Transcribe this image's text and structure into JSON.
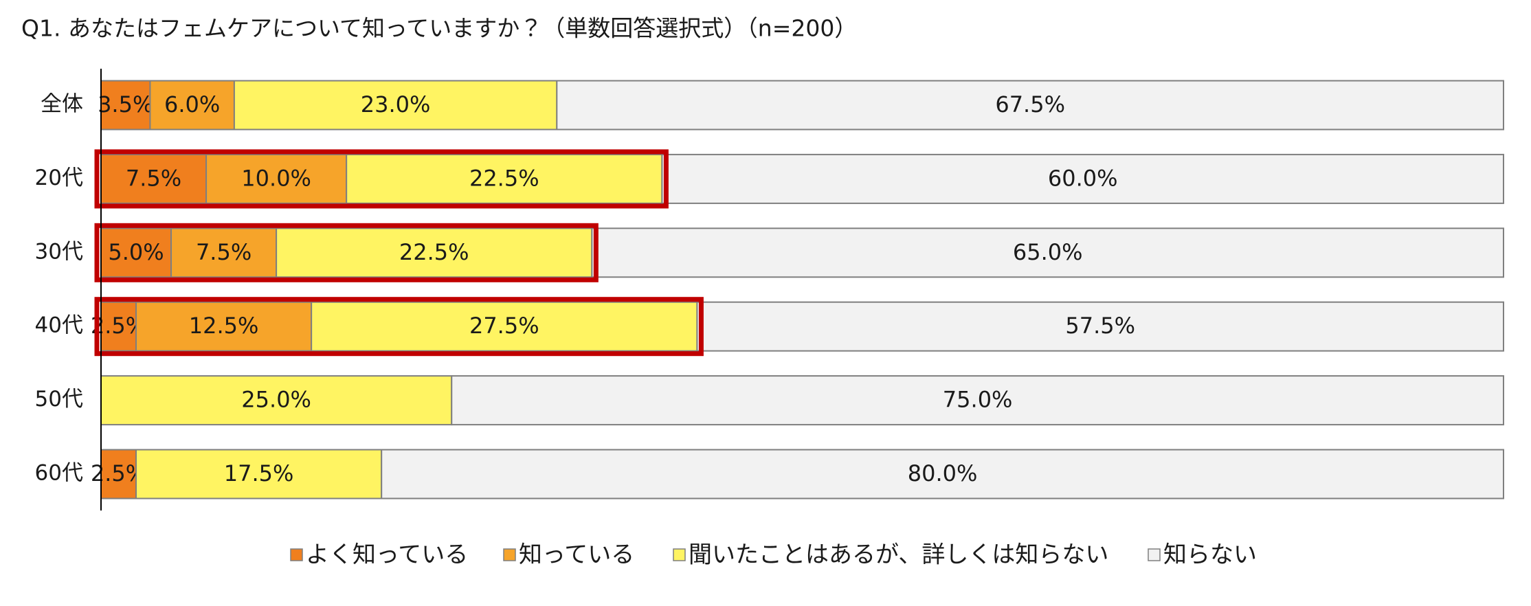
{
  "chart_data": {
    "type": "stacked-bar-horizontal",
    "title": "Q1. あなたはフェムケアについて知っていますか？（単数回答選択式）（n=200）",
    "categories": [
      "全体",
      "20代",
      "30代",
      "40代",
      "50代",
      "60代"
    ],
    "xlim": [
      0,
      100
    ],
    "highlight_rows": [
      1,
      2,
      3
    ],
    "highlight_color": "#c00000",
    "series": [
      {
        "name": "よく知っている",
        "color": "#f07f1e",
        "values": [
          3.5,
          7.5,
          5.0,
          2.5,
          0,
          2.5
        ],
        "value_labels": [
          "3.5%",
          "7.5%",
          "5.0%",
          "2.5%",
          null,
          "2.5%"
        ]
      },
      {
        "name": "知っている",
        "color": "#f6a42a",
        "values": [
          6.0,
          10.0,
          7.5,
          12.5,
          0,
          0
        ],
        "value_labels": [
          "6.0%",
          "10.0%",
          "7.5%",
          "12.5%",
          null,
          null
        ]
      },
      {
        "name": "聞いたことはあるが、詳しくは知らない",
        "color": "#fff462",
        "values": [
          23.0,
          22.5,
          22.5,
          27.5,
          25.0,
          17.5
        ],
        "value_labels": [
          "23.0%",
          "22.5%",
          "22.5%",
          "27.5%",
          "25.0%",
          "17.5%"
        ]
      },
      {
        "name": "知らない",
        "color": "#f2f2f2",
        "values": [
          67.5,
          60.0,
          65.0,
          57.5,
          75.0,
          80.0
        ],
        "value_labels": [
          "67.5%",
          "60.0%",
          "65.0%",
          "57.5%",
          "75.0%",
          "80.0%"
        ]
      }
    ]
  }
}
